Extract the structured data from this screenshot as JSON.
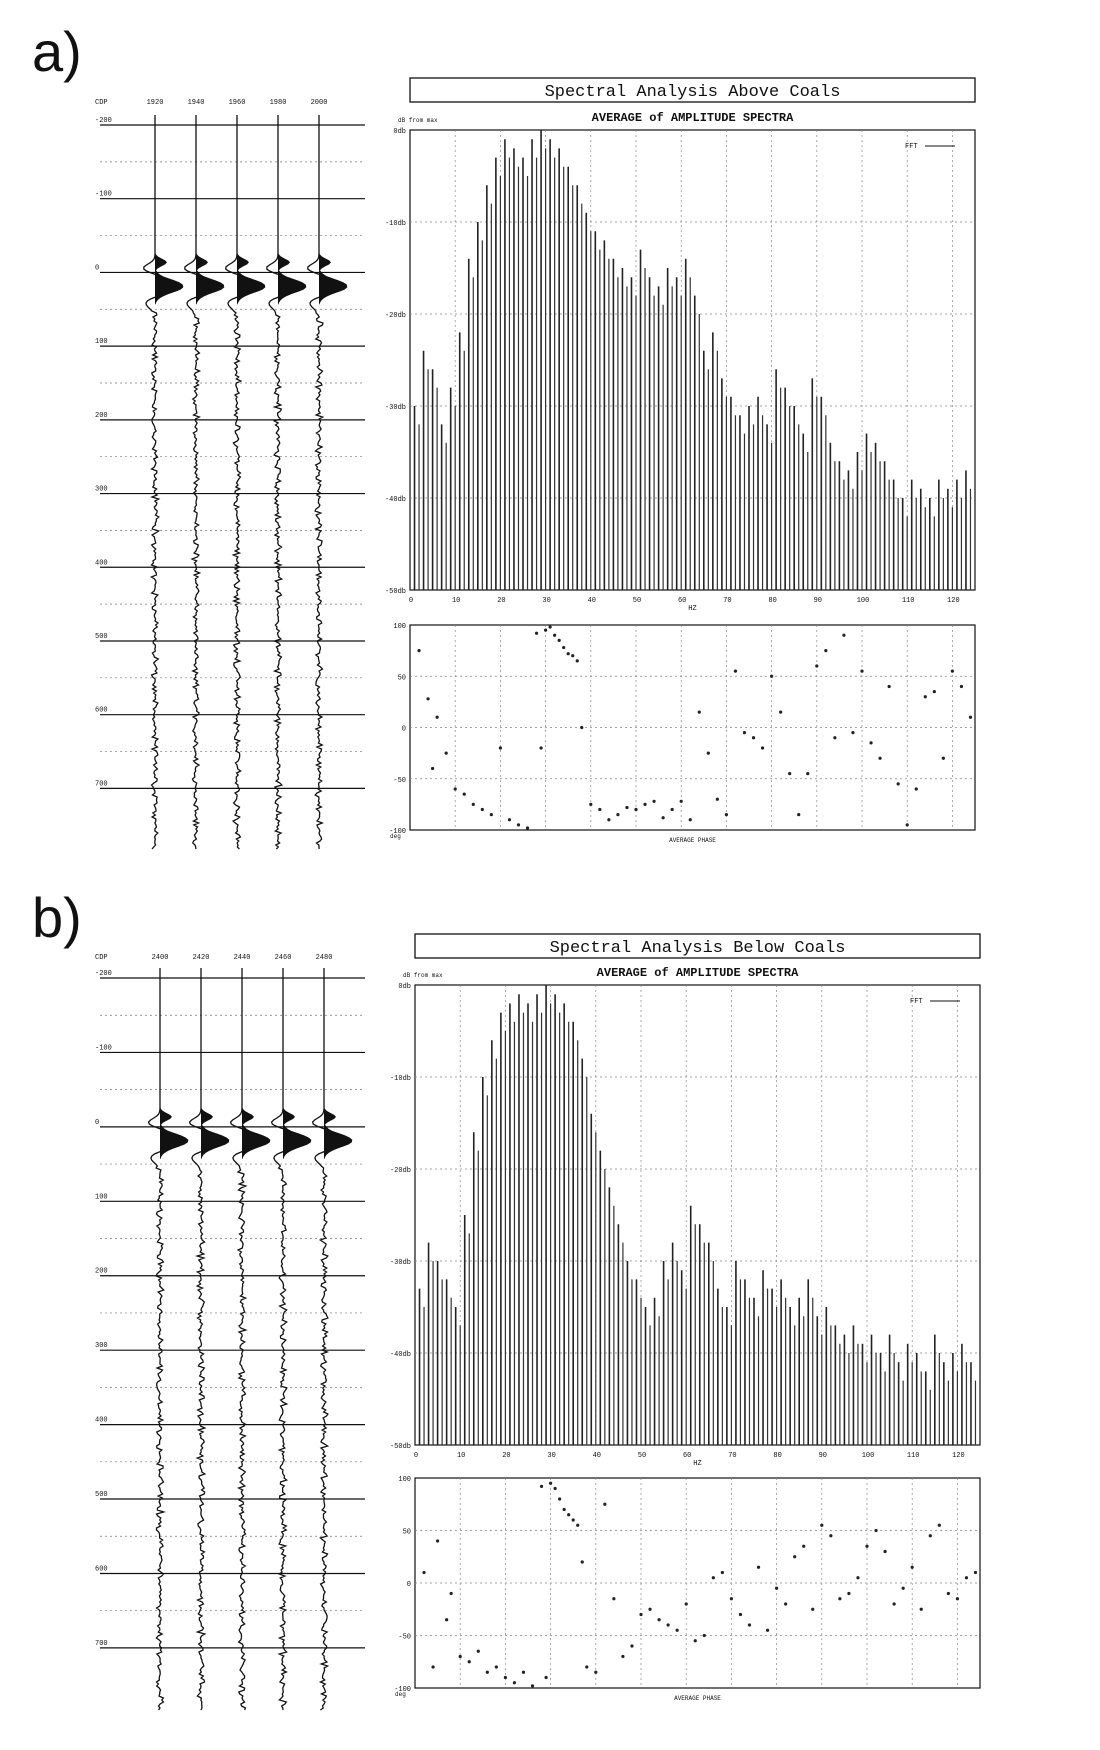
{
  "panels": [
    {
      "label": "a)",
      "chart_data": {
        "type": "bar",
        "title": "Spectral Analysis Above Coals",
        "subtitle": "AVERAGE of AMPLITUDE SPECTRA",
        "ylabel": "dB from max",
        "xlabel": "HZ",
        "legend": "FFT",
        "legend_placement": "top-right",
        "ylim": [
          -50,
          0
        ],
        "xlim": [
          0,
          125
        ],
        "x_ticks": [
          0,
          10,
          20,
          30,
          40,
          50,
          60,
          70,
          80,
          90,
          100,
          110,
          120
        ],
        "y_tick_labels": [
          "0db",
          "-10db",
          "-20db",
          "-30db",
          "-40db",
          "-50db"
        ],
        "grid": true,
        "x": [
          1,
          3,
          5,
          7,
          9,
          11,
          13,
          15,
          17,
          19,
          21,
          23,
          25,
          27,
          29,
          31,
          33,
          35,
          37,
          39,
          41,
          43,
          45,
          47,
          49,
          51,
          53,
          55,
          57,
          59,
          61,
          63,
          65,
          67,
          69,
          71,
          73,
          75,
          77,
          79,
          81,
          83,
          85,
          87,
          89,
          91,
          93,
          95,
          97,
          99,
          101,
          103,
          105,
          107,
          109,
          111,
          113,
          115,
          117,
          119,
          121,
          123
        ],
        "values": [
          -30,
          -24,
          -26,
          -32,
          -28,
          -22,
          -14,
          -10,
          -6,
          -3,
          -1,
          -2,
          -3,
          -1,
          0,
          -1,
          -2,
          -4,
          -6,
          -9,
          -11,
          -12,
          -14,
          -15,
          -16,
          -13,
          -16,
          -17,
          -15,
          -16,
          -14,
          -18,
          -24,
          -22,
          -27,
          -29,
          -31,
          -30,
          -29,
          -32,
          -26,
          -28,
          -30,
          -33,
          -27,
          -29,
          -34,
          -36,
          -37,
          -35,
          -33,
          -34,
          -36,
          -38,
          -40,
          -38,
          -39,
          -40,
          -38,
          -39,
          -38,
          -37
        ],
        "phase": {
          "ylim": [
            -100,
            100
          ],
          "y_tick_labels": [
            "100",
            "50",
            "0",
            "-50",
            "-100"
          ],
          "xlabel": "AVERAGE PHASE",
          "ylabel": "deg",
          "x": [
            2,
            4,
            5,
            6,
            8,
            10,
            12,
            14,
            16,
            18,
            20,
            22,
            24,
            26,
            28,
            29,
            30,
            31,
            32,
            33,
            34,
            35,
            36,
            37,
            38,
            40,
            42,
            44,
            46,
            48,
            50,
            52,
            54,
            56,
            58,
            60,
            62,
            64,
            66,
            68,
            70,
            72,
            74,
            76,
            78,
            80,
            82,
            84,
            86,
            88,
            90,
            92,
            94,
            96,
            98,
            100,
            102,
            104,
            106,
            108,
            110,
            112,
            114,
            116,
            118,
            120,
            122,
            124
          ],
          "values": [
            75,
            28,
            -40,
            10,
            -25,
            -60,
            -65,
            -75,
            -80,
            -85,
            -20,
            -90,
            -95,
            -98,
            92,
            -20,
            95,
            98,
            90,
            85,
            78,
            72,
            70,
            65,
            0,
            -75,
            -80,
            -90,
            -85,
            -78,
            -80,
            -75,
            -72,
            -88,
            -80,
            -72,
            -90,
            15,
            -25,
            -70,
            -85,
            55,
            -5,
            -10,
            -20,
            50,
            15,
            -45,
            -85,
            -45,
            60,
            75,
            -10,
            90,
            -5,
            55,
            -15,
            -30,
            40,
            -55,
            -95,
            -60,
            30,
            35,
            -30,
            55,
            40,
            10
          ]
        }
      },
      "seismic": {
        "header": "CDP",
        "traces": [
          "1920",
          "1940",
          "1960",
          "1980",
          "2000"
        ],
        "time_labels": [
          "-200",
          "-100",
          "0",
          "100",
          "200",
          "300",
          "400",
          "500",
          "600",
          "700"
        ]
      }
    },
    {
      "label": "b)",
      "chart_data": {
        "type": "bar",
        "title": "Spectral Analysis Below Coals",
        "subtitle": "AVERAGE of AMPLITUDE SPECTRA",
        "ylabel": "dB from max",
        "xlabel": "HZ",
        "legend": "FFT",
        "legend_placement": "top-right",
        "ylim": [
          -50,
          0
        ],
        "xlim": [
          0,
          125
        ],
        "x_ticks": [
          0,
          10,
          20,
          30,
          40,
          50,
          60,
          70,
          80,
          90,
          100,
          110,
          120
        ],
        "y_tick_labels": [
          "0db",
          "-10db",
          "-20db",
          "-30db",
          "-40db",
          "-50db"
        ],
        "grid": true,
        "x": [
          1,
          3,
          5,
          7,
          9,
          11,
          13,
          15,
          17,
          19,
          21,
          23,
          25,
          27,
          29,
          31,
          33,
          35,
          37,
          39,
          41,
          43,
          45,
          47,
          49,
          51,
          53,
          55,
          57,
          59,
          61,
          63,
          65,
          67,
          69,
          71,
          73,
          75,
          77,
          79,
          81,
          83,
          85,
          87,
          89,
          91,
          93,
          95,
          97,
          99,
          101,
          103,
          105,
          107,
          109,
          111,
          113,
          115,
          117,
          119,
          121,
          123
        ],
        "values": [
          -33,
          -28,
          -30,
          -32,
          -35,
          -25,
          -16,
          -10,
          -6,
          -3,
          -2,
          -1,
          -2,
          -1,
          0,
          -1,
          -2,
          -4,
          -8,
          -14,
          -18,
          -22,
          -26,
          -30,
          -32,
          -35,
          -34,
          -30,
          -28,
          -31,
          -24,
          -26,
          -28,
          -33,
          -35,
          -30,
          -32,
          -34,
          -31,
          -33,
          -32,
          -35,
          -34,
          -32,
          -36,
          -35,
          -37,
          -38,
          -37,
          -39,
          -38,
          -40,
          -38,
          -41,
          -39,
          -40,
          -42,
          -38,
          -41,
          -40,
          -39,
          -41
        ],
        "phase": {
          "ylim": [
            -100,
            100
          ],
          "y_tick_labels": [
            "100",
            "50",
            "0",
            "-50",
            "-100"
          ],
          "xlabel": "AVERAGE PHASE",
          "ylabel": "deg",
          "x": [
            2,
            4,
            5,
            7,
            8,
            10,
            12,
            14,
            16,
            18,
            20,
            22,
            24,
            26,
            28,
            29,
            30,
            31,
            32,
            33,
            34,
            35,
            36,
            37,
            38,
            40,
            42,
            44,
            46,
            48,
            50,
            52,
            54,
            56,
            58,
            60,
            62,
            64,
            66,
            68,
            70,
            72,
            74,
            76,
            78,
            80,
            82,
            84,
            86,
            88,
            90,
            92,
            94,
            96,
            98,
            100,
            102,
            104,
            106,
            108,
            110,
            112,
            114,
            116,
            118,
            120,
            122,
            124
          ],
          "values": [
            10,
            -80,
            40,
            -35,
            -10,
            -70,
            -75,
            -65,
            -85,
            -80,
            -90,
            -95,
            -85,
            -98,
            92,
            -90,
            95,
            90,
            80,
            70,
            65,
            60,
            55,
            20,
            -80,
            -85,
            75,
            -15,
            -70,
            -60,
            -30,
            -25,
            -35,
            -40,
            -45,
            -20,
            -55,
            -50,
            5,
            10,
            -15,
            -30,
            -40,
            15,
            -45,
            -5,
            -20,
            25,
            35,
            -25,
            55,
            45,
            -15,
            -10,
            5,
            35,
            50,
            30,
            -20,
            -5,
            15,
            -25,
            45,
            55,
            -10,
            -15,
            5,
            10
          ]
        }
      },
      "seismic": {
        "header": "CDP",
        "traces": [
          "2400",
          "2420",
          "2440",
          "2460",
          "2480"
        ],
        "time_labels": [
          "-200",
          "-100",
          "0",
          "100",
          "200",
          "300",
          "400",
          "500",
          "600",
          "700"
        ]
      }
    }
  ]
}
